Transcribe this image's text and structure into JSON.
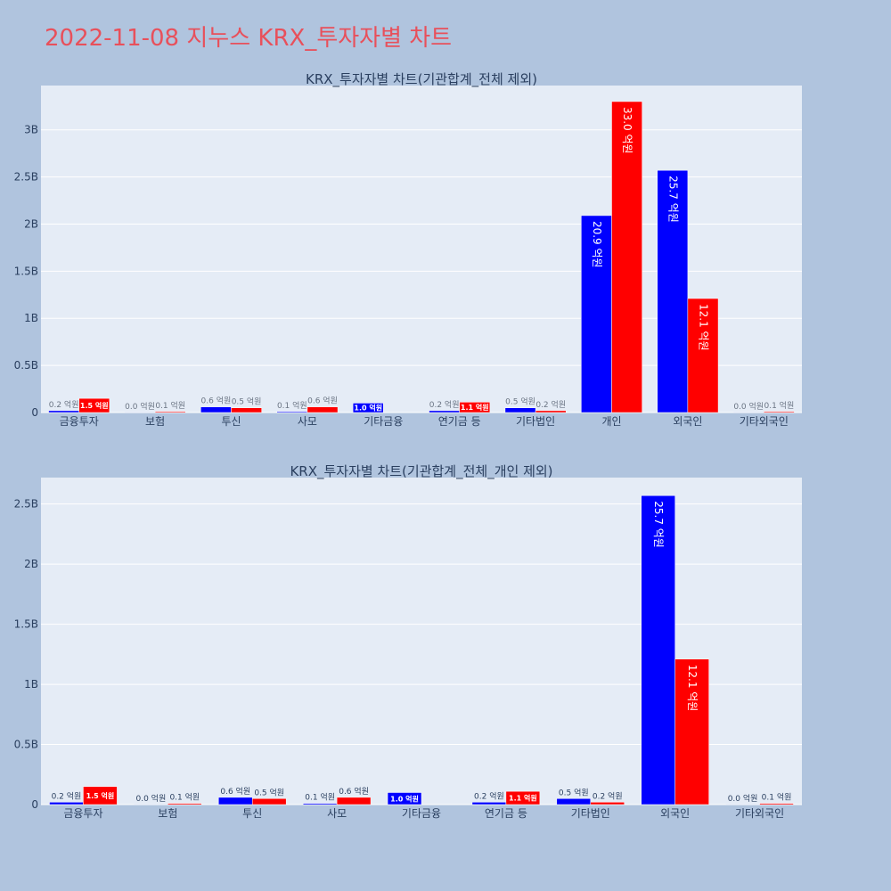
{
  "page_title": "2022-11-08 지누스 KRX_투자자별 차트",
  "colors": {
    "page_bg": "#b0c4de",
    "plot_bg": "#e5ecf6",
    "title": "#e8505b",
    "buy": "#0000ff",
    "sell": "#ff0000",
    "text": "#2a3f5f",
    "grid": "#ffffff"
  },
  "chart_data": [
    {
      "type": "bar",
      "title": "KRX_투자자별 차트(기관합계_전체 제외)",
      "categories": [
        "금융투자",
        "보험",
        "투신",
        "사모",
        "기타금융",
        "연기금 등",
        "기타법인",
        "개인",
        "외국인",
        "기타외국인"
      ],
      "series": [
        {
          "values": [
            20000000,
            1000000,
            60000000,
            10000000,
            100000000,
            20000000,
            50000000,
            2090000000,
            2570000000,
            1000000
          ],
          "labels": [
            "0.2 억원",
            "0.0 억원",
            "0.6 억원",
            "0.1 억원",
            "1.0 억원",
            "0.2 억원",
            "0.5 억원",
            "20.9 억원",
            "25.7 억원",
            "0.0 억원"
          ]
        },
        {
          "values": [
            150000000,
            10000000,
            50000000,
            60000000,
            0,
            110000000,
            20000000,
            3300000000,
            1210000000,
            10000000
          ],
          "labels": [
            "1.5 억원",
            "0.1 억원",
            "0.5 억원",
            "0.6 억원",
            "",
            "1.1 억원",
            "0.2 억원",
            "33.0 억원",
            "12.1 억원",
            "0.1 억원"
          ]
        }
      ],
      "yticks": [
        0,
        500000000,
        1000000000,
        1500000000,
        2000000000,
        2500000000,
        3000000000
      ],
      "ytick_labels": [
        "0",
        "0.5B",
        "1B",
        "1.5B",
        "2B",
        "2.5B",
        "3B"
      ],
      "ylim": [
        0,
        3470000000
      ],
      "grid": true
    },
    {
      "type": "bar",
      "title": "KRX_투자자별 차트(기관합계_전체_개인 제외)",
      "categories": [
        "금융투자",
        "보험",
        "투신",
        "사모",
        "기타금융",
        "연기금 등",
        "기타법인",
        "외국인",
        "기타외국인"
      ],
      "series": [
        {
          "values": [
            20000000,
            1000000,
            60000000,
            10000000,
            100000000,
            20000000,
            50000000,
            2570000000,
            1000000
          ],
          "labels": [
            "0.2 억원",
            "0.0 억원",
            "0.6 억원",
            "0.1 억원",
            "1.0 억원",
            "0.2 억원",
            "0.5 억원",
            "25.7 억원",
            "0.0 억원"
          ]
        },
        {
          "values": [
            150000000,
            10000000,
            50000000,
            60000000,
            0,
            110000000,
            20000000,
            1210000000,
            10000000
          ],
          "labels": [
            "1.5 억원",
            "0.1 억원",
            "0.5 억원",
            "0.6 억원",
            "",
            "1.1 억원",
            "0.2 억원",
            "12.1 억원",
            "0.1 억원"
          ]
        }
      ],
      "yticks": [
        0,
        500000000,
        1000000000,
        1500000000,
        2000000000,
        2500000000
      ],
      "ytick_labels": [
        "0",
        "0.5B",
        "1B",
        "1.5B",
        "2B",
        "2.5B"
      ],
      "ylim": [
        0,
        2720000000
      ],
      "grid": true
    }
  ]
}
